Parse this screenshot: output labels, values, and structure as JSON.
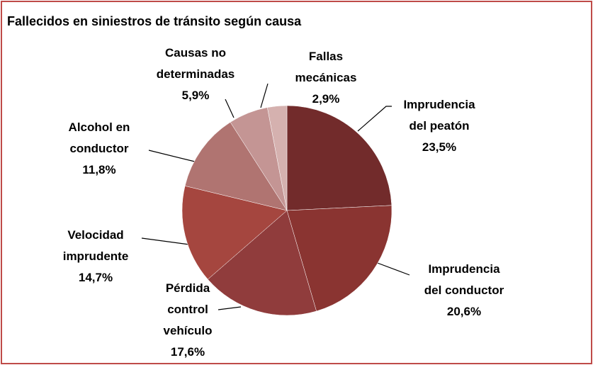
{
  "chart_data": {
    "type": "pie",
    "title": "Fallecidos en siniestros de tránsito según causa",
    "categories": [
      "Imprudencia del peatón",
      "Imprudencia del conductor",
      "Pérdida control vehículo",
      "Velocidad imprudente",
      "Alcohol en conductor",
      "Causas no determinadas",
      "Fallas mecánicas"
    ],
    "values": [
      23.5,
      20.6,
      17.6,
      14.7,
      11.8,
      5.9,
      2.9
    ],
    "value_labels": [
      "23,5%",
      "20,6%",
      "17,6%",
      "14,7%",
      "11,8%",
      "5,9%",
      "2,9%"
    ],
    "colors": [
      "#722b2b",
      "#8a3431",
      "#903c3c",
      "#a5463f",
      "#b07471",
      "#c49594",
      "#d5b1af"
    ]
  }
}
